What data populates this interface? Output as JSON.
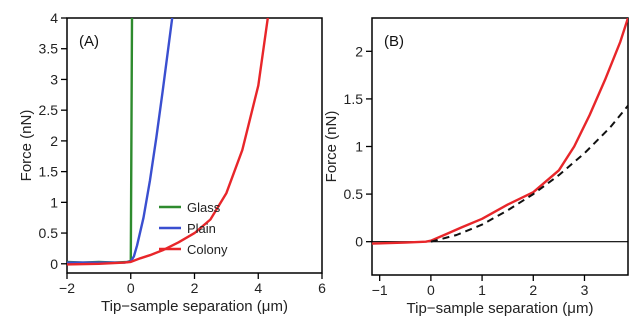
{
  "chart_data": [
    {
      "type": "line",
      "panel_label": "(A)",
      "xlabel": "Tip−sample separation (μm)",
      "ylabel": "Force (nN)",
      "xlim": [
        -2,
        6
      ],
      "ylim": [
        -0.15,
        4
      ],
      "xticks": [
        -2,
        0,
        2,
        4,
        6
      ],
      "yticks": [
        0,
        0.5,
        1,
        1.5,
        2,
        2.5,
        3,
        3.5,
        4
      ],
      "legend": "lower-right",
      "series": [
        {
          "name": "Glass",
          "color": "#2e8b2e",
          "x": [
            -2,
            -1.5,
            -1,
            -0.5,
            -0.1,
            0,
            0.02,
            0.04
          ],
          "y": [
            0.03,
            0.02,
            0.03,
            0.02,
            0.03,
            0.05,
            2.0,
            4.0
          ]
        },
        {
          "name": "Plain",
          "color": "#3a4fd0",
          "x": [
            -2,
            -1,
            -0.2,
            0,
            0.1,
            0.2,
            0.4,
            0.6,
            0.8,
            1.0,
            1.2,
            1.3
          ],
          "y": [
            0.02,
            0.02,
            0.02,
            0.04,
            0.12,
            0.3,
            0.75,
            1.35,
            2.05,
            2.8,
            3.6,
            4.0
          ]
        },
        {
          "name": "Colony",
          "color": "#e8262a",
          "x": [
            -2,
            -1,
            -0.2,
            0,
            0.3,
            0.6,
            1,
            1.5,
            2,
            2.5,
            3,
            3.5,
            4,
            4.3
          ],
          "y": [
            -0.01,
            0.0,
            0.02,
            0.03,
            0.09,
            0.14,
            0.22,
            0.35,
            0.5,
            0.72,
            1.15,
            1.85,
            2.9,
            4.0
          ]
        }
      ]
    },
    {
      "type": "line",
      "panel_label": "(B)",
      "xlabel": "Tip−sample separation (μm)",
      "ylabel": "Force (nN)",
      "xlim": [
        -1.15,
        3.85
      ],
      "ylim": [
        -0.35,
        2.35
      ],
      "xticks": [
        -1,
        0,
        1,
        2,
        3
      ],
      "yticks": [
        0,
        0.5,
        1,
        1.5,
        2
      ],
      "series": [
        {
          "color": "#e8262a",
          "style": "solid",
          "x": [
            -1.15,
            -0.5,
            -0.1,
            0,
            0.3,
            0.6,
            1,
            1.5,
            2,
            2.5,
            2.8,
            3.1,
            3.4,
            3.7,
            3.85
          ],
          "y": [
            -0.02,
            -0.01,
            0.0,
            0.01,
            0.08,
            0.15,
            0.24,
            0.39,
            0.52,
            0.75,
            1.0,
            1.33,
            1.7,
            2.1,
            2.35
          ]
        },
        {
          "color": "#111111",
          "style": "dashed",
          "x": [
            0,
            0.5,
            1,
            1.5,
            2,
            2.5,
            3,
            3.5,
            3.85
          ],
          "y": [
            0.0,
            0.07,
            0.18,
            0.33,
            0.5,
            0.7,
            0.93,
            1.2,
            1.43
          ]
        }
      ],
      "baseline_y": 0
    }
  ]
}
